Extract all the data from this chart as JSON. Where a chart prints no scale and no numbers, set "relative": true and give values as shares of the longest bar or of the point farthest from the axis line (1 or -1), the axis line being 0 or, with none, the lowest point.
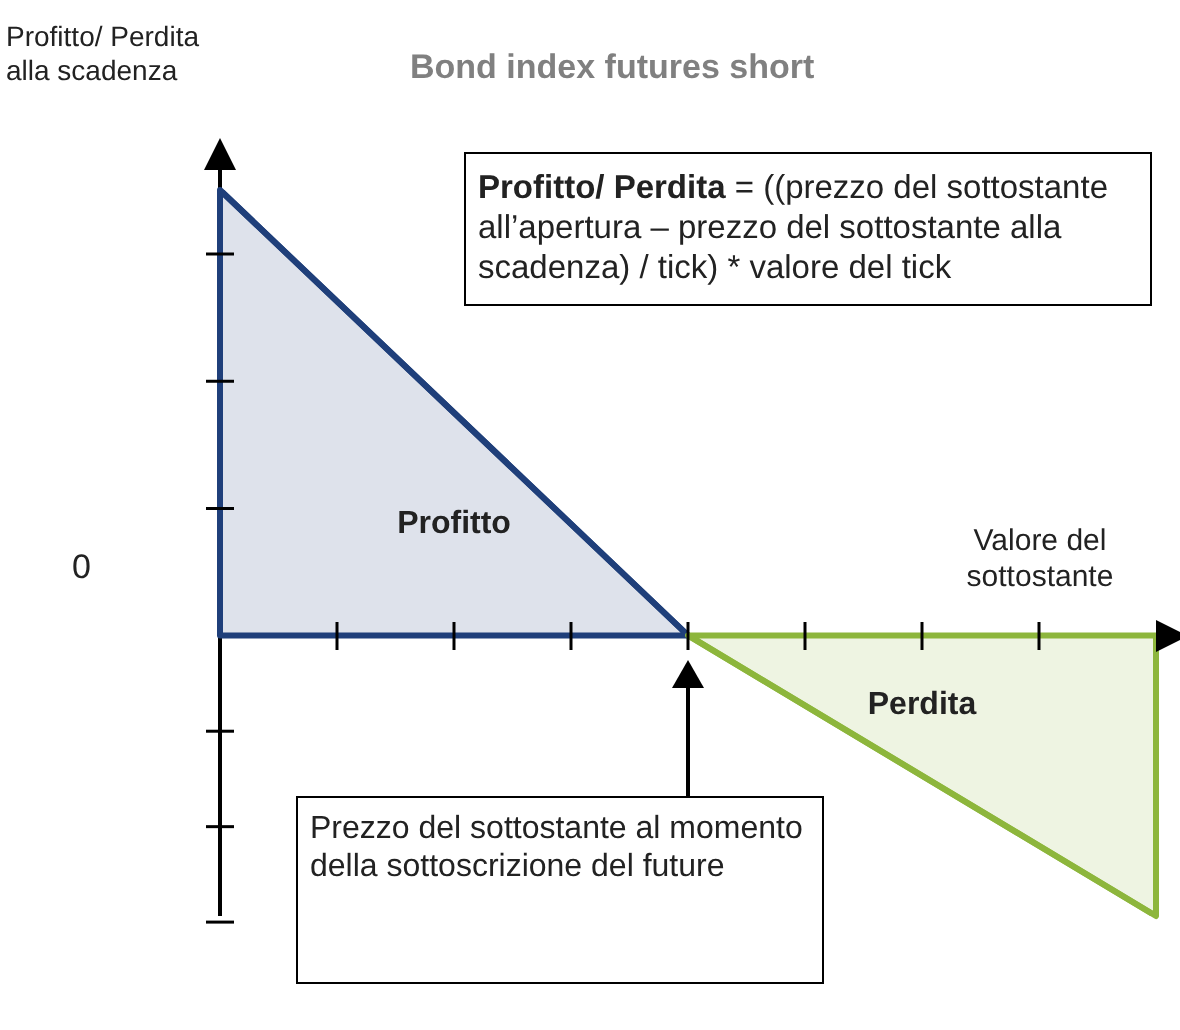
{
  "chart_data": {
    "type": "area",
    "title": "Bond index futures short",
    "ylabel": "Profitto/ Perdita alla scadenza",
    "xlabel": "Valore del sottostante",
    "relative": true,
    "marker": "none",
    "categories": [
      null,
      null,
      null
    ],
    "series": [
      {
        "name": "Profitto",
        "color": "#1f3f7a",
        "values": [
          1,
          0,
          null
        ]
      },
      {
        "name": "Perdita",
        "color": "#8db63c",
        "values": [
          null,
          0,
          -0.63
        ]
      }
    ],
    "annotations": [
      "0",
      "Profitto/ Perdita",
      "= ((prezzo del sottostante all’apertura – prezzo del sottostante alla scadenza) / tick) * valore del tick",
      "Prezzo del sottostante al momento della sottoscrizione del future"
    ]
  }
}
